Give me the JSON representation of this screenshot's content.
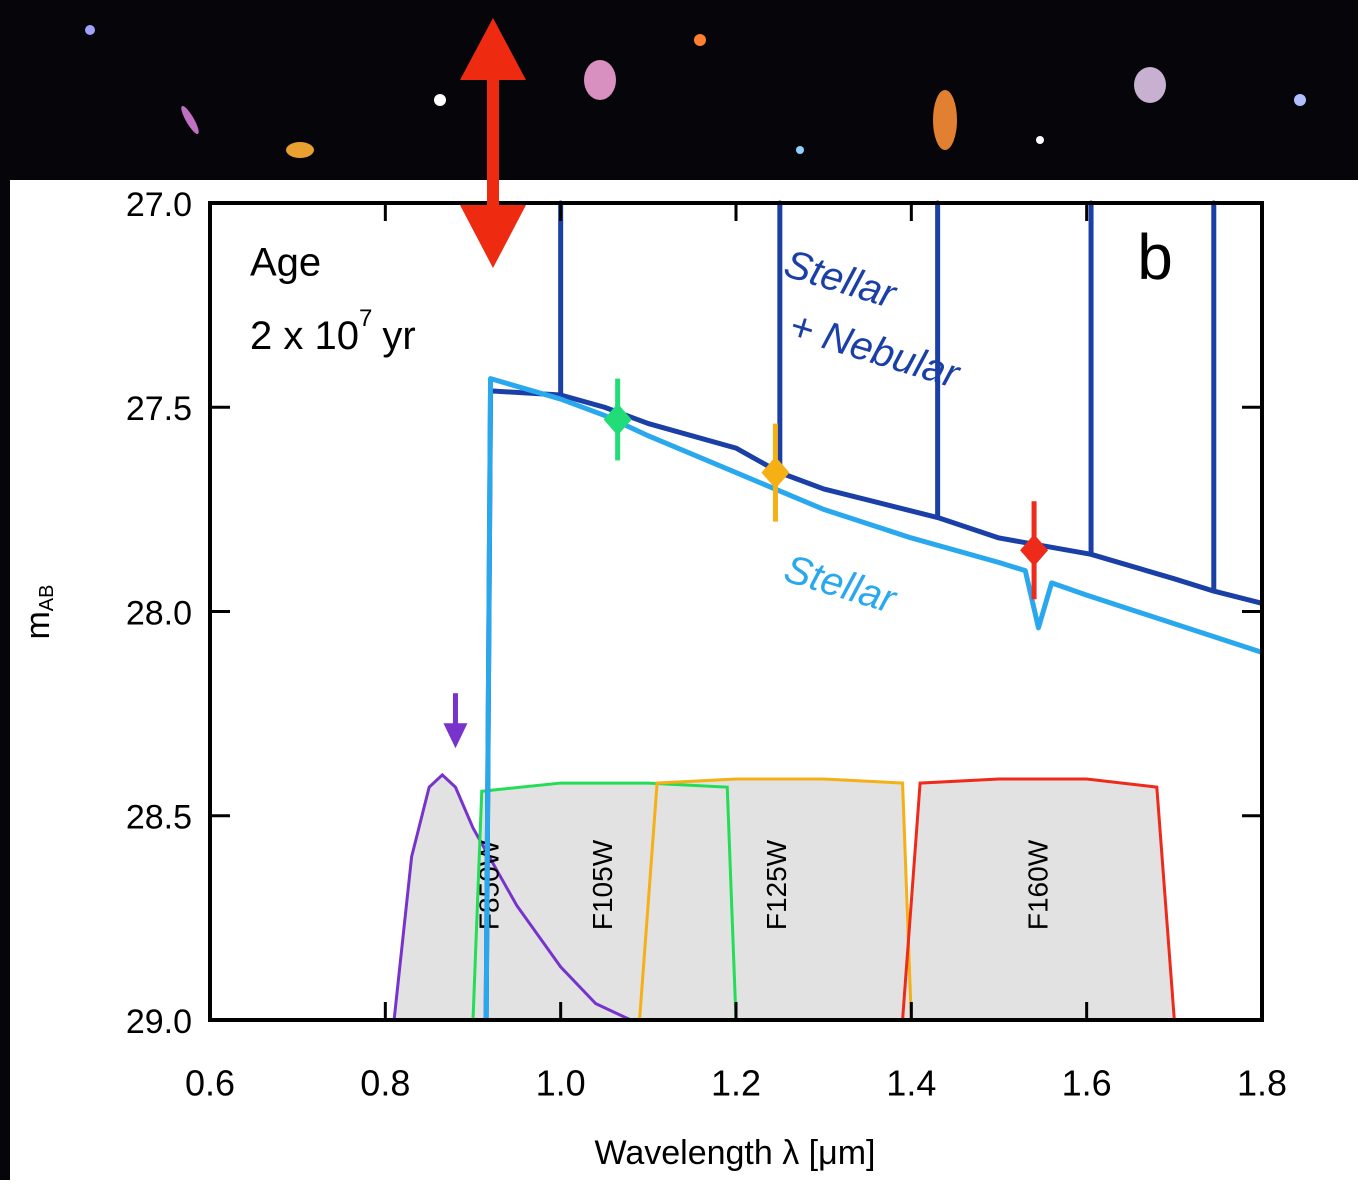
{
  "chart_data": {
    "type": "line",
    "xlabel": "Wavelength λ [μm]",
    "ylabel": "m",
    "ylabel_sub": "AB",
    "panel": "b",
    "age_label": "Age",
    "age_value": "2 x 10",
    "age_exp": "7",
    "age_unit": "yr",
    "xlim": [
      0.6,
      1.8
    ],
    "ylim": [
      27,
      29
    ],
    "y_inverted": true,
    "xticks": [
      0.6,
      0.8,
      {
        "value": 1,
        "label": "1.0"
      },
      1.2,
      1.4,
      1.6,
      1.8
    ],
    "yticks": [
      {
        "value": 27,
        "label": "27.0"
      },
      27.5,
      {
        "value": 28,
        "label": "28.0"
      },
      28.5,
      {
        "value": 29,
        "label": "29.0"
      }
    ],
    "series": [
      {
        "label": [
          "Stellar",
          "+ Nebular"
        ],
        "color": "#1a3fa6",
        "x": [
          0.915,
          0.92,
          1.0,
          1.0,
          1.0,
          1.05,
          1.1,
          1.2,
          1.25,
          1.25,
          1.25,
          1.3,
          1.43,
          1.43,
          1.43,
          1.5,
          1.605,
          1.605,
          1.605,
          1.7,
          1.745,
          1.745,
          1.745,
          1.8
        ],
        "values": [
          29.0,
          27.46,
          27.47,
          27.0,
          27.47,
          27.5,
          27.54,
          27.6,
          27.66,
          27.0,
          27.66,
          27.7,
          27.77,
          27.0,
          27.77,
          27.82,
          27.86,
          27.0,
          27.86,
          27.92,
          27.95,
          27.0,
          27.95,
          27.98
        ]
      },
      {
        "label": [
          "Stellar"
        ],
        "color": "#2aa8ee",
        "x": [
          0.915,
          0.92,
          1.0,
          1.05,
          1.1,
          1.2,
          1.3,
          1.4,
          1.5,
          1.53,
          1.545,
          1.56,
          1.6,
          1.7,
          1.8
        ],
        "values": [
          29.0,
          27.43,
          27.48,
          27.52,
          27.57,
          27.66,
          27.75,
          27.82,
          27.88,
          27.9,
          28.04,
          27.93,
          27.96,
          28.03,
          28.1
        ]
      }
    ],
    "points": [
      {
        "color": "#22dd77",
        "x": 1.065,
        "value": 27.53,
        "error": 0.1
      },
      {
        "color": "#f4b015",
        "x": 1.245,
        "value": 27.66,
        "error": 0.12
      },
      {
        "color": "#ee2a1a",
        "x": 1.54,
        "value": 27.85,
        "error": 0.12
      }
    ],
    "upper_limit": {
      "color": "#7733cc",
      "x": 0.88,
      "value": 28.2
    },
    "filters": [
      {
        "name": "F850W",
        "color": "#7733cc",
        "x": [
          0.81,
          0.83,
          0.85,
          0.865,
          0.88,
          0.9,
          0.95,
          1.0,
          1.04,
          1.08
        ],
        "values": [
          29.0,
          28.6,
          28.43,
          28.4,
          28.43,
          28.53,
          28.72,
          28.87,
          28.96,
          29.0
        ]
      },
      {
        "name": "F105W",
        "color": "#22dd55",
        "x": [
          0.9,
          0.91,
          1.0,
          1.1,
          1.19,
          1.2
        ],
        "values": [
          29.0,
          28.44,
          28.42,
          28.42,
          28.43,
          29.0
        ]
      },
      {
        "name": "F125W",
        "color": "#f4b015",
        "x": [
          1.09,
          1.11,
          1.2,
          1.3,
          1.39,
          1.4
        ],
        "values": [
          29.0,
          28.42,
          28.41,
          28.41,
          28.42,
          29.0
        ]
      },
      {
        "name": "F160W",
        "color": "#ee2a1a",
        "x": [
          1.39,
          1.41,
          1.5,
          1.6,
          1.68,
          1.7
        ],
        "values": [
          29.0,
          28.42,
          28.41,
          28.41,
          28.43,
          29.0
        ]
      }
    ]
  }
}
